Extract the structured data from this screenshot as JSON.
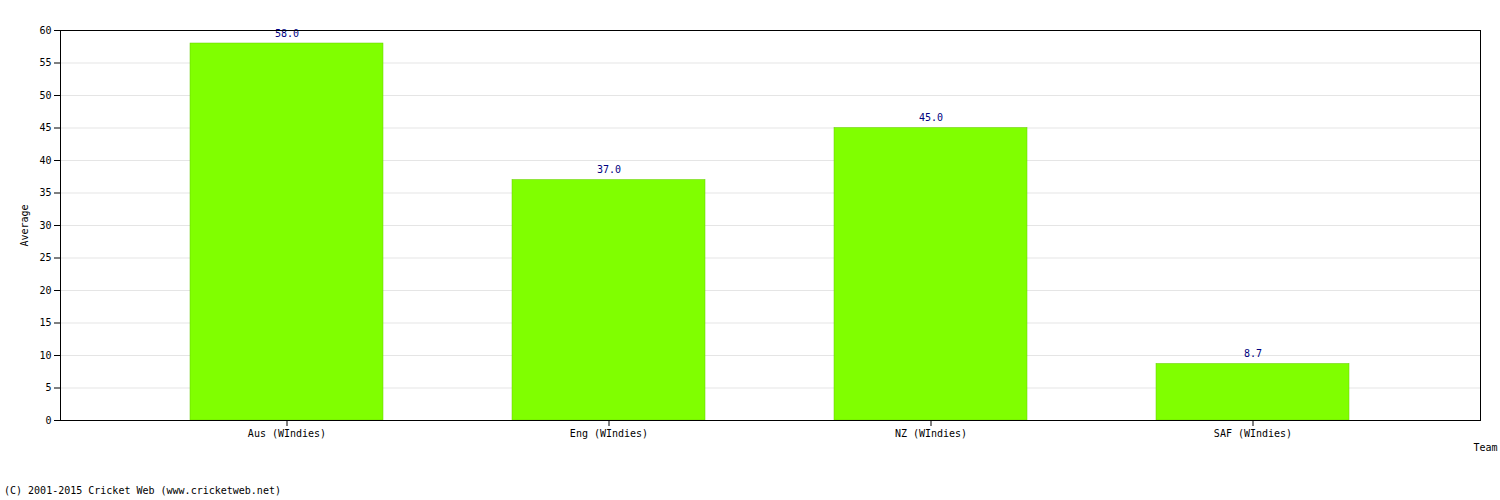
{
  "chart_data": {
    "type": "bar",
    "categories": [
      "Aus (WIndies)",
      "Eng (WIndies)",
      "NZ (WIndies)",
      "SAF (WIndies)"
    ],
    "values": [
      58.0,
      37.0,
      45.0,
      8.7
    ],
    "value_labels": [
      "58.0",
      "37.0",
      "45.0",
      "8.7"
    ],
    "data_labels": true,
    "color": "#80ff00",
    "x_label": "Team",
    "y_label": "Average",
    "ylim": [
      0,
      60
    ],
    "yticks": [
      0,
      5,
      10,
      15,
      20,
      25,
      30,
      35,
      40,
      45,
      50,
      55,
      60
    ],
    "grid": true,
    "caption": "(C) 2001-2015 Cricket Web (www.cricketweb.net)"
  }
}
